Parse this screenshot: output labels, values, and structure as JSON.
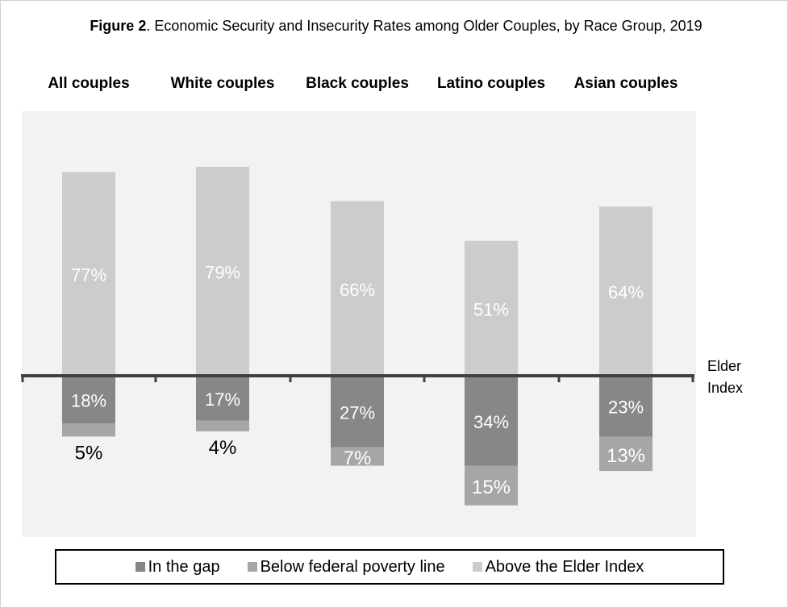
{
  "chart_data": {
    "type": "bar",
    "stacked": "diverging",
    "title_bold": "Figure 2",
    "title": ". Economic Security and Insecurity Rates among Older Couples, by Race Group, 2019",
    "categories": [
      "All couples",
      "White couples",
      "Black couples",
      "Latino couples",
      "Asian couples"
    ],
    "reference_line_label": "Elder Index",
    "legend_position": "bottom",
    "series": [
      {
        "name": "In the gap",
        "direction": "below",
        "color": "#878787",
        "values": [
          18,
          17,
          27,
          34,
          23
        ],
        "labels": [
          "18%",
          "17%",
          "27%",
          "34%",
          "23%"
        ]
      },
      {
        "name": "Below federal poverty line",
        "direction": "below",
        "color": "#a6a6a6",
        "values": [
          5,
          4,
          7,
          15,
          13
        ],
        "labels": [
          "5%",
          "4%",
          "7%",
          "15%",
          "13%"
        ]
      },
      {
        "name": "Above the Elder Index",
        "direction": "above",
        "color": "#cccccc",
        "values": [
          77,
          79,
          66,
          51,
          64
        ],
        "labels": [
          "77%",
          "79%",
          "66%",
          "51%",
          "64%"
        ]
      }
    ]
  }
}
